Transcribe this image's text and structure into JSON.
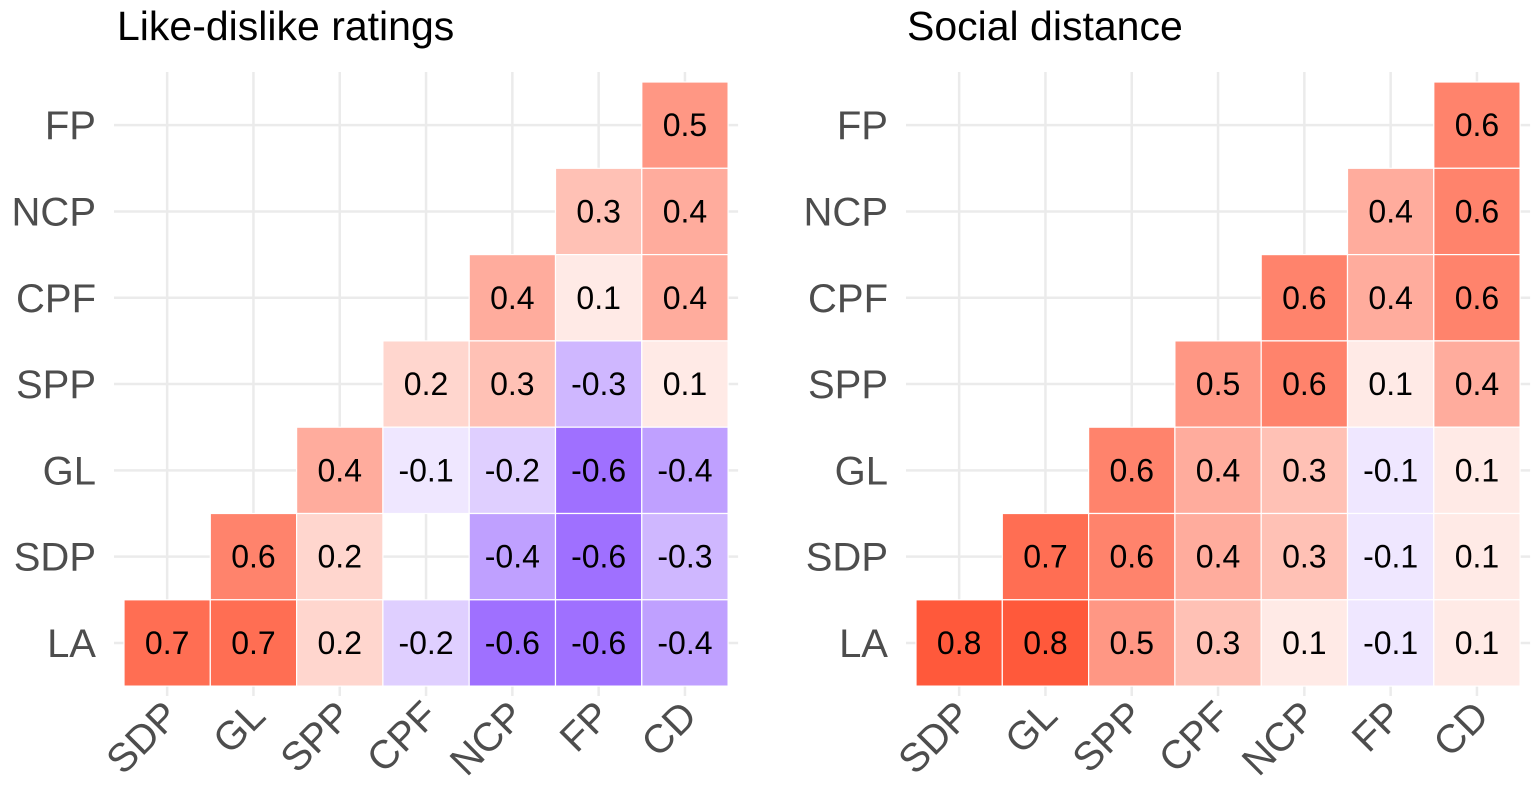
{
  "chart_data": [
    {
      "type": "heatmap",
      "title": "Like-dislike ratings",
      "x_categories": [
        "SDP",
        "GL",
        "SPP",
        "CPF",
        "NCP",
        "FP",
        "CD"
      ],
      "y_categories": [
        "FP",
        "NCP",
        "CPF",
        "SPP",
        "GL",
        "SDP",
        "LA"
      ],
      "values": [
        [
          null,
          null,
          null,
          null,
          null,
          null,
          0.5
        ],
        [
          null,
          null,
          null,
          null,
          null,
          0.3,
          0.4
        ],
        [
          null,
          null,
          null,
          null,
          0.4,
          0.1,
          0.4
        ],
        [
          null,
          null,
          null,
          0.2,
          0.3,
          -0.3,
          0.1
        ],
        [
          null,
          null,
          0.4,
          -0.1,
          -0.2,
          -0.6,
          -0.4
        ],
        [
          null,
          0.6,
          0.2,
          null,
          -0.4,
          -0.6,
          -0.3
        ],
        [
          0.7,
          0.7,
          0.2,
          -0.2,
          -0.6,
          -0.6,
          -0.4
        ]
      ],
      "color_positive": "#FF5536",
      "color_negative": "#9C6BFF",
      "grid": true
    },
    {
      "type": "heatmap",
      "title": "Social distance",
      "x_categories": [
        "SDP",
        "GL",
        "SPP",
        "CPF",
        "NCP",
        "FP",
        "CD"
      ],
      "y_categories": [
        "FP",
        "NCP",
        "CPF",
        "SPP",
        "GL",
        "SDP",
        "LA"
      ],
      "values": [
        [
          null,
          null,
          null,
          null,
          null,
          null,
          0.6
        ],
        [
          null,
          null,
          null,
          null,
          null,
          0.4,
          0.6
        ],
        [
          null,
          null,
          null,
          null,
          0.6,
          0.4,
          0.6
        ],
        [
          null,
          null,
          null,
          0.5,
          0.6,
          0.1,
          0.4
        ],
        [
          null,
          null,
          0.6,
          0.4,
          0.3,
          -0.1,
          0.1
        ],
        [
          null,
          0.7,
          0.6,
          0.4,
          0.3,
          -0.1,
          0.1
        ],
        [
          0.8,
          0.8,
          0.5,
          0.3,
          0.1,
          -0.1,
          0.1
        ]
      ],
      "color_positive": "#FF5536",
      "color_negative": "#9C6BFF",
      "grid": true
    }
  ]
}
